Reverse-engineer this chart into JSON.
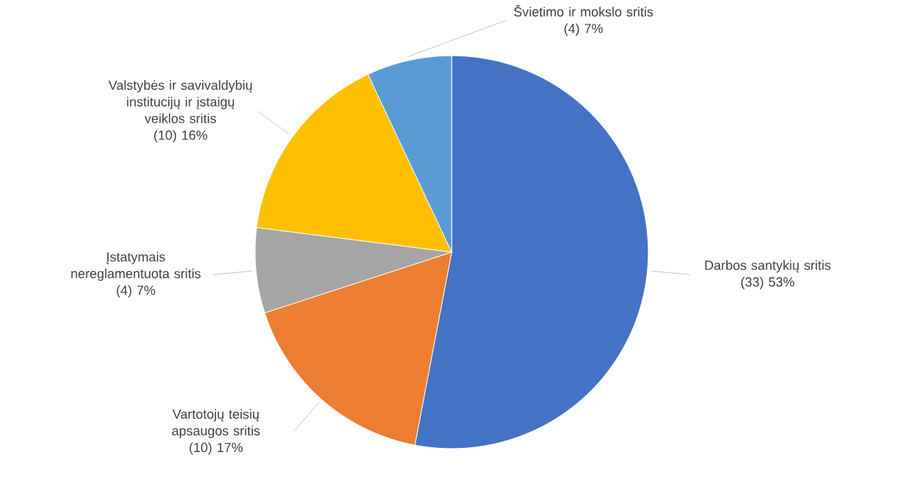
{
  "chart_data": {
    "type": "pie",
    "categories": [
      "Darbos santykių sritis",
      "Vartotojų teisių apsaugos sritis",
      "Įstatymais nereglamentuota sritis",
      "Valstybės ir savivaldybių institucijų ir įstaigų veiklos sritis",
      "Švietimo ir mokslo sritis"
    ],
    "values": [
      53,
      17,
      7,
      16,
      7
    ],
    "value_labels": [
      "(33) 53%",
      "(10) 17%",
      "(4) 7%",
      "(10) 16%",
      "(4) 7%"
    ],
    "colors": [
      "#4472c4",
      "#ed7d31",
      "#a5a5a5",
      "#ffc000",
      "#5b9bd5"
    ]
  }
}
